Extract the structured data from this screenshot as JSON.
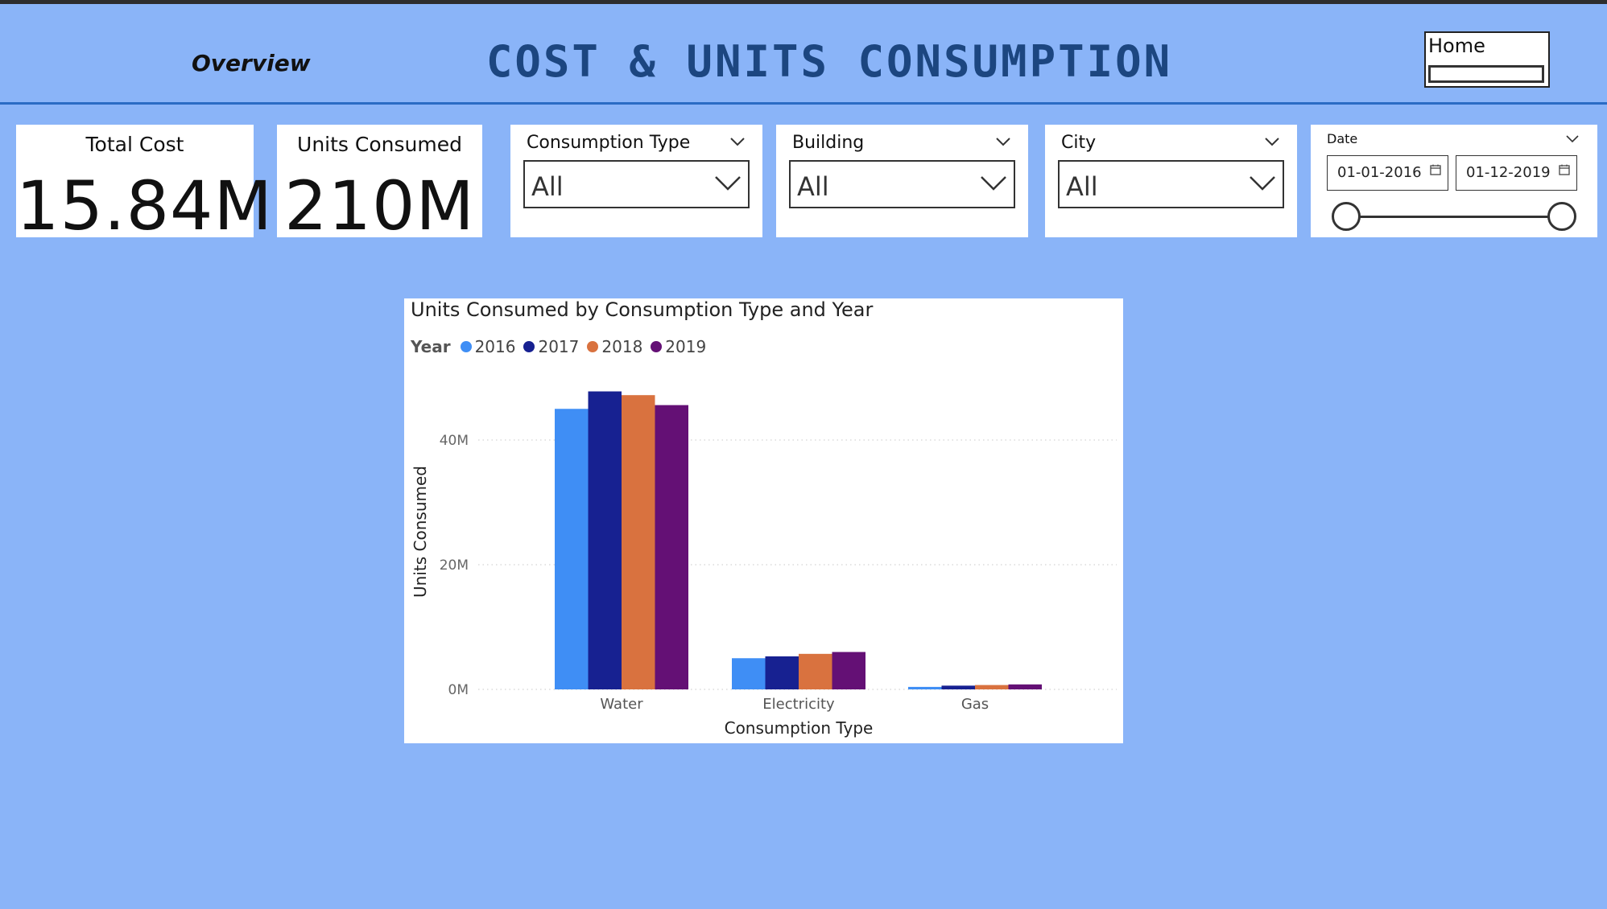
{
  "header": {
    "nav_label": "Overview",
    "title": "COST & UNITS CONSUMPTION",
    "home_label": "Home"
  },
  "kpis": {
    "total_cost": {
      "label": "Total Cost",
      "value": "15.84M"
    },
    "units_consumed": {
      "label": "Units Consumed",
      "value": "210M"
    }
  },
  "slicers": {
    "consumption_type": {
      "label": "Consumption Type",
      "value": "All"
    },
    "building": {
      "label": "Building",
      "value": "All"
    },
    "city": {
      "label": "City",
      "value": "All"
    },
    "date": {
      "label": "Date",
      "start": "01-01-2016",
      "end": "01-12-2019",
      "range_fraction": [
        0,
        1
      ]
    }
  },
  "colors": {
    "background": "#8ab4f8",
    "title": "#1c4680",
    "series": [
      "#3f8ef5",
      "#172191",
      "#d9723f",
      "#641075"
    ]
  },
  "chart_data": {
    "type": "bar",
    "title": "Units Consumed by Consumption Type and Year",
    "xlabel": "Consumption Type",
    "ylabel": "Units Consumed",
    "legend_title": "Year",
    "legend_position": "top-left",
    "categories": [
      "Water",
      "Electricity",
      "Gas"
    ],
    "series": [
      {
        "name": "2016",
        "values": [
          45,
          5,
          0.4
        ]
      },
      {
        "name": "2017",
        "values": [
          47.8,
          5.3,
          0.6
        ]
      },
      {
        "name": "2018",
        "values": [
          47.2,
          5.7,
          0.7
        ]
      },
      {
        "name": "2019",
        "values": [
          45.6,
          6,
          0.8
        ]
      }
    ],
    "unit": "M",
    "yticks": [
      0,
      20,
      40
    ],
    "ytick_labels": [
      "0M",
      "20M",
      "40M"
    ],
    "ylim": [
      0,
      50
    ],
    "grid": true
  }
}
